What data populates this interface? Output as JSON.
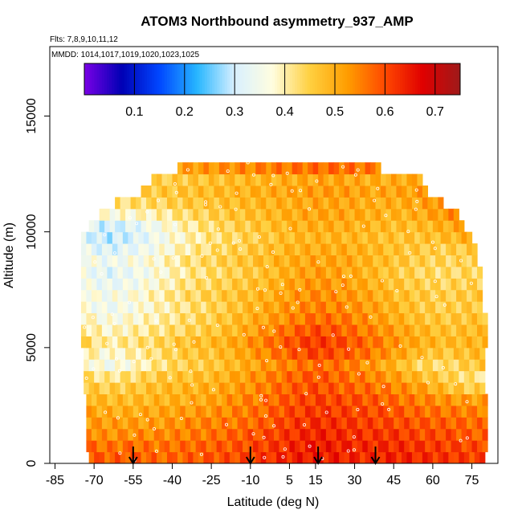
{
  "chart_data": {
    "type": "heatmap",
    "title": "ATOM3 Northbound asymmetry_937_AMP",
    "flights_note": "Flts: 7,8,9,10,11,12",
    "dates_note": "MMDD: 1014,1017,1019,1020,1023,1025",
    "xlabel": "Latitude (deg N)",
    "ylabel": "Altitude (m)",
    "xlim": [
      -87,
      85
    ],
    "ylim": [
      0,
      18000
    ],
    "x_ticks": [
      -85,
      -70,
      -55,
      -40,
      -25,
      -10,
      5,
      15,
      30,
      45,
      60,
      75
    ],
    "y_ticks": [
      0,
      5000,
      10000,
      15000
    ],
    "colorbar": {
      "min": 0.0,
      "max": 0.75,
      "ticks": [
        0.1,
        0.2,
        0.3,
        0.4,
        0.5,
        0.6,
        0.7
      ],
      "colors": [
        "#7a00e6",
        "#0000b4",
        "#0047ff",
        "#27b6ff",
        "#d8f0ff",
        "#fffde0",
        "#ffd040",
        "#ff9d00",
        "#ff4800",
        "#e00000",
        "#9e1a1a"
      ]
    },
    "arrows_latitude": [
      -55,
      -10,
      16,
      38
    ],
    "profile_lat_range": [
      -72,
      80
    ],
    "altitude_levels": [
      250,
      750,
      1250,
      1750,
      2250,
      2750,
      3250,
      3750,
      4250,
      4750,
      5250,
      5750,
      6250,
      6750,
      7250,
      7750,
      8250,
      8750,
      9250,
      9750,
      10250,
      10750,
      11250,
      11750,
      12250,
      12750
    ],
    "coverage_lat_range": [
      [
        -72,
        80
      ],
      [
        -73,
        80
      ],
      [
        -73,
        80
      ],
      [
        -73,
        80
      ],
      [
        -73,
        80
      ],
      [
        -73,
        80
      ],
      [
        -74,
        80
      ],
      [
        -74,
        80
      ],
      [
        -74,
        80
      ],
      [
        -74,
        80
      ],
      [
        -75,
        80
      ],
      [
        -75,
        80
      ],
      [
        -75,
        80
      ],
      [
        -75,
        79
      ],
      [
        -75,
        79
      ],
      [
        -75,
        79
      ],
      [
        -75,
        78
      ],
      [
        -75,
        77
      ],
      [
        -75,
        77
      ],
      [
        -75,
        75
      ],
      [
        -72,
        72
      ],
      [
        -68,
        69
      ],
      [
        -62,
        64
      ],
      [
        -52,
        58
      ],
      [
        -48,
        56
      ],
      [
        -38,
        40
      ]
    ],
    "lat_bins": [
      -75,
      -65,
      -55,
      -45,
      -35,
      -25,
      -15,
      -5,
      5,
      15,
      25,
      35,
      45,
      55,
      65,
      75
    ],
    "values": [
      [
        0.6,
        0.58,
        0.59,
        0.57,
        0.58,
        0.59,
        0.6,
        0.62,
        0.64,
        0.65,
        0.64,
        0.63,
        0.64,
        0.63,
        0.62,
        0.61
      ],
      [
        0.58,
        0.56,
        0.57,
        0.56,
        0.57,
        0.58,
        0.59,
        0.61,
        0.63,
        0.65,
        0.64,
        0.63,
        0.63,
        0.62,
        0.61,
        0.6
      ],
      [
        0.55,
        0.53,
        0.54,
        0.54,
        0.55,
        0.56,
        0.58,
        0.6,
        0.62,
        0.64,
        0.63,
        0.62,
        0.62,
        0.6,
        0.6,
        0.58
      ],
      [
        0.53,
        0.52,
        0.52,
        0.52,
        0.54,
        0.55,
        0.56,
        0.58,
        0.61,
        0.63,
        0.62,
        0.61,
        0.6,
        0.59,
        0.58,
        0.57
      ],
      [
        0.52,
        0.5,
        0.5,
        0.51,
        0.52,
        0.53,
        0.55,
        0.57,
        0.6,
        0.62,
        0.61,
        0.6,
        0.59,
        0.57,
        0.56,
        0.55
      ],
      [
        0.5,
        0.48,
        0.48,
        0.49,
        0.5,
        0.51,
        0.54,
        0.56,
        0.59,
        0.61,
        0.6,
        0.59,
        0.57,
        0.55,
        0.53,
        0.52
      ],
      [
        0.47,
        0.45,
        0.46,
        0.48,
        0.49,
        0.5,
        0.52,
        0.55,
        0.58,
        0.6,
        0.58,
        0.57,
        0.55,
        0.52,
        0.48,
        0.45
      ],
      [
        0.44,
        0.41,
        0.43,
        0.46,
        0.47,
        0.48,
        0.51,
        0.54,
        0.57,
        0.59,
        0.57,
        0.55,
        0.52,
        0.48,
        0.45,
        0.42
      ],
      [
        0.4,
        0.35,
        0.38,
        0.42,
        0.45,
        0.46,
        0.49,
        0.52,
        0.55,
        0.57,
        0.56,
        0.53,
        0.49,
        0.44,
        0.43,
        0.46
      ],
      [
        0.42,
        0.37,
        0.4,
        0.43,
        0.46,
        0.47,
        0.5,
        0.54,
        0.58,
        0.61,
        0.59,
        0.56,
        0.52,
        0.48,
        0.46,
        0.48
      ],
      [
        0.45,
        0.4,
        0.42,
        0.44,
        0.47,
        0.48,
        0.51,
        0.55,
        0.59,
        0.62,
        0.6,
        0.57,
        0.53,
        0.5,
        0.48,
        0.49
      ],
      [
        0.42,
        0.38,
        0.4,
        0.42,
        0.44,
        0.46,
        0.49,
        0.53,
        0.57,
        0.6,
        0.58,
        0.55,
        0.52,
        0.49,
        0.47,
        0.48
      ],
      [
        0.4,
        0.36,
        0.38,
        0.4,
        0.43,
        0.45,
        0.48,
        0.51,
        0.54,
        0.57,
        0.56,
        0.53,
        0.5,
        0.47,
        0.46,
        0.47
      ],
      [
        0.37,
        0.34,
        0.36,
        0.39,
        0.42,
        0.44,
        0.47,
        0.5,
        0.53,
        0.55,
        0.54,
        0.52,
        0.49,
        0.46,
        0.45,
        0.46
      ],
      [
        0.38,
        0.35,
        0.37,
        0.4,
        0.43,
        0.45,
        0.47,
        0.49,
        0.52,
        0.54,
        0.53,
        0.51,
        0.48,
        0.46,
        0.45,
        0.46
      ],
      [
        0.36,
        0.33,
        0.35,
        0.38,
        0.42,
        0.44,
        0.46,
        0.48,
        0.51,
        0.53,
        0.52,
        0.5,
        0.47,
        0.45,
        0.44,
        0.45
      ],
      [
        0.35,
        0.32,
        0.34,
        0.37,
        0.41,
        0.43,
        0.45,
        0.47,
        0.5,
        0.52,
        0.51,
        0.49,
        0.46,
        0.44,
        0.43,
        0.44
      ],
      [
        0.37,
        0.34,
        0.36,
        0.38,
        0.42,
        0.44,
        0.46,
        0.48,
        0.5,
        0.51,
        0.51,
        0.49,
        0.47,
        0.45,
        0.44,
        0.45
      ],
      [
        0.34,
        0.31,
        0.33,
        0.36,
        0.4,
        0.43,
        0.45,
        0.47,
        0.49,
        0.5,
        0.5,
        0.49,
        0.47,
        0.46,
        0.45,
        0.46
      ],
      [
        0.32,
        0.29,
        0.31,
        0.35,
        0.39,
        0.42,
        0.44,
        0.46,
        0.48,
        0.49,
        0.49,
        0.48,
        0.47,
        0.47,
        0.48,
        0.5
      ],
      [
        0.33,
        0.3,
        0.32,
        0.36,
        0.4,
        0.43,
        0.45,
        0.47,
        0.49,
        0.5,
        0.5,
        0.49,
        0.48,
        0.48,
        0.5,
        0.52
      ],
      [
        0.4,
        0.37,
        0.38,
        0.4,
        0.43,
        0.45,
        0.47,
        0.48,
        0.5,
        0.51,
        0.51,
        0.5,
        0.49,
        0.5,
        0.53,
        0.56
      ],
      [
        0.44,
        0.42,
        0.43,
        0.44,
        0.46,
        0.47,
        0.48,
        0.49,
        0.5,
        0.51,
        0.51,
        0.5,
        0.5,
        0.51,
        0.54,
        0.58
      ],
      [
        0.46,
        0.44,
        0.45,
        0.46,
        0.47,
        0.48,
        0.49,
        0.5,
        0.51,
        0.52,
        0.52,
        0.51,
        0.51,
        0.52,
        0.55,
        0.6
      ],
      [
        0.45,
        0.44,
        0.44,
        0.45,
        0.46,
        0.47,
        0.48,
        0.49,
        0.5,
        0.51,
        0.51,
        0.5,
        0.5,
        0.51,
        0.53,
        0.56
      ],
      [
        0.52,
        0.5,
        0.5,
        0.51,
        0.52,
        0.53,
        0.54,
        0.55,
        0.56,
        0.57,
        0.57,
        0.56,
        0.55,
        0.55,
        0.56,
        0.58
      ]
    ],
    "legend_position": "top"
  }
}
